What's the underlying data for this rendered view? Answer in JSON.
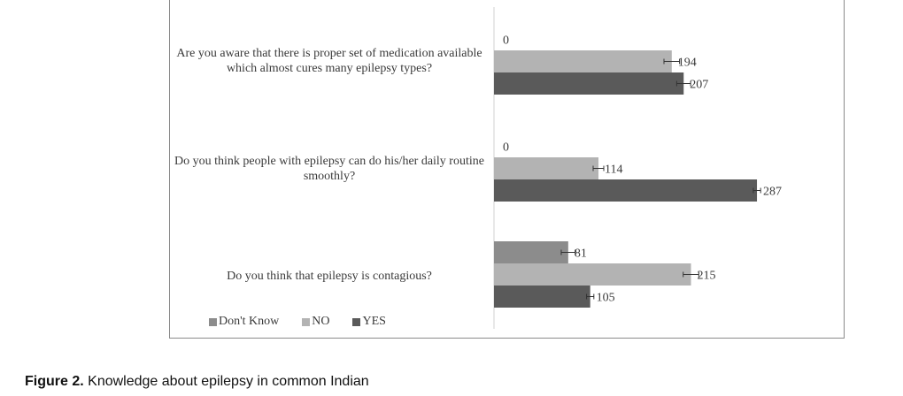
{
  "caption": {
    "label": "Figure 2.",
    "text": "Knowledge about epilepsy in common Indian"
  },
  "colors": {
    "dont_know": "#8c8c8c",
    "no": "#b3b3b3",
    "yes": "#5a5a5a"
  },
  "chart_data": {
    "type": "bar",
    "orientation": "horizontal",
    "categories": [
      "Are you aware that there is proper set of medication available which almost cures many epilepsy types?",
      "Do you think people with epilepsy can do his/her daily routine smoothly?",
      "Do you think that epilepsy is contagious?"
    ],
    "series": [
      {
        "name": "Don't Know",
        "values": [
          0,
          0,
          81
        ]
      },
      {
        "name": "NO",
        "values": [
          194,
          114,
          215
        ]
      },
      {
        "name": "YES",
        "values": [
          207,
          287,
          105
        ]
      }
    ],
    "xlim": [
      0,
      300
    ],
    "error_bars": true,
    "grid": false,
    "legend_position": "bottom-left"
  }
}
